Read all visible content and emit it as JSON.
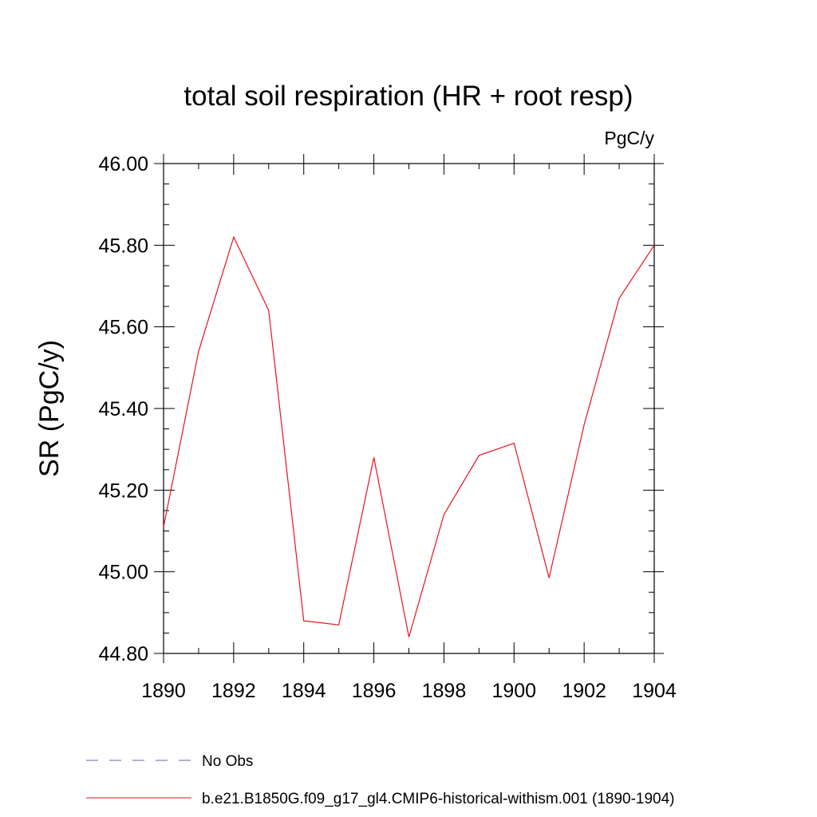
{
  "chart_data": {
    "type": "line",
    "title": "total soil respiration (HR + root resp)",
    "units": "PgC/y",
    "ylabel": "SR  (PgC/y)",
    "xlabel": "",
    "xlim": [
      1890,
      1904
    ],
    "ylim": [
      44.8,
      46.0
    ],
    "x_ticks": [
      "1890",
      "1892",
      "1894",
      "1896",
      "1898",
      "1900",
      "1902",
      "1904"
    ],
    "y_ticks": [
      "44.80",
      "45.00",
      "45.20",
      "45.40",
      "45.60",
      "45.80",
      "46.00"
    ],
    "grid": false,
    "legend_position": "bottom",
    "x": [
      1890,
      1891,
      1892,
      1893,
      1894,
      1895,
      1896,
      1897,
      1898,
      1899,
      1900,
      1901,
      1902,
      1903,
      1904
    ],
    "series": [
      {
        "name": "b.e21.B1850G.f09_g17_gl4.CMIP6-historical-withism.001 (1890-1904)",
        "color": "#e8121b",
        "style": "solid",
        "values": [
          45.11,
          45.54,
          45.82,
          45.64,
          44.88,
          44.87,
          45.28,
          44.84,
          45.14,
          45.285,
          45.315,
          44.985,
          45.36,
          45.67,
          45.8
        ]
      }
    ],
    "legend": [
      {
        "label": "No Obs",
        "color": "#6a5fb0",
        "style": "dashed"
      },
      {
        "label": "b.e21.B1850G.f09_g17_gl4.CMIP6-historical-withism.001 (1890-1904)",
        "color": "#e8121b",
        "style": "solid"
      }
    ]
  }
}
